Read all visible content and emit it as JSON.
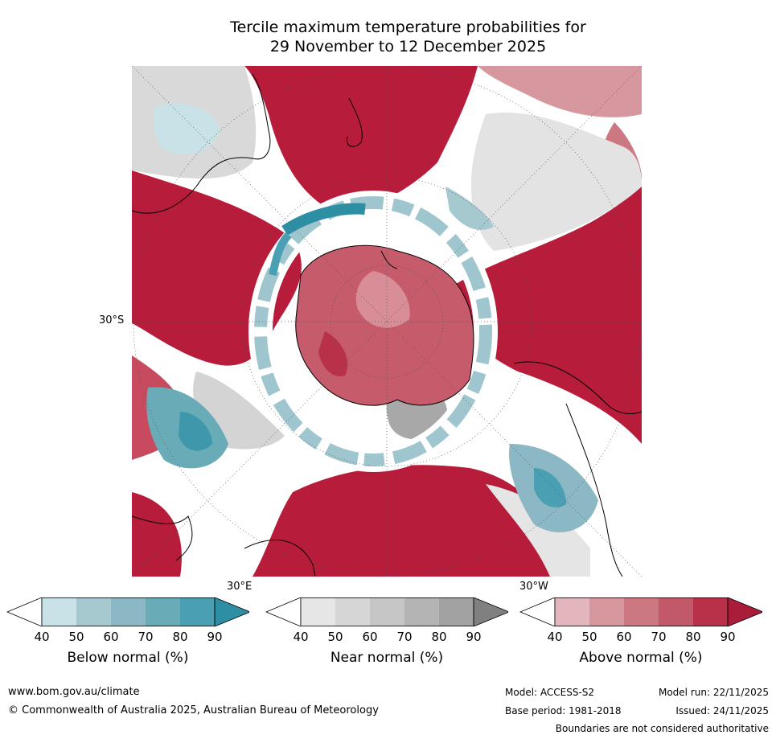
{
  "title": {
    "line1": "Tercile maximum temperature probabilities for",
    "line2": "29 November to 12 December 2025"
  },
  "map": {
    "projection": "south-polar-stereographic",
    "lat_label": "30°S",
    "lon_label_east": "30°E",
    "lon_label_west": "30°W"
  },
  "legends": [
    {
      "name": "below-normal",
      "title": "Below normal (%)",
      "ticks": [
        "40",
        "50",
        "60",
        "70",
        "80",
        "90"
      ],
      "colors": [
        "#ffffff",
        "#c9e2e8",
        "#a6c9d0",
        "#8bb8c4",
        "#6aabb8",
        "#4aa0b2",
        "#2e8ea3"
      ]
    },
    {
      "name": "near-normal",
      "title": "Near normal (%)",
      "ticks": [
        "40",
        "50",
        "60",
        "70",
        "80",
        "90"
      ],
      "colors": [
        "#ffffff",
        "#e6e6e6",
        "#d6d6d6",
        "#c6c6c6",
        "#b4b4b4",
        "#a2a2a2",
        "#808080"
      ]
    },
    {
      "name": "above-normal",
      "title": "Above normal (%)",
      "ticks": [
        "40",
        "50",
        "60",
        "70",
        "80",
        "90"
      ],
      "colors": [
        "#ffffff",
        "#e2b6bc",
        "#d6979f",
        "#cc7882",
        "#c2596a",
        "#b93049",
        "#a91c3a"
      ]
    }
  ],
  "footer": {
    "url": "www.bom.gov.au/climate",
    "copyright": "© Commonwealth of Australia 2025, Australian Bureau of Meteorology",
    "model": "Model: ACCESS-S2",
    "base_period": "Base period: 1981-2018",
    "model_run": "Model run: 22/11/2025",
    "issued": "Issued: 24/11/2025",
    "disclaimer": "Boundaries are not considered authoritative"
  }
}
